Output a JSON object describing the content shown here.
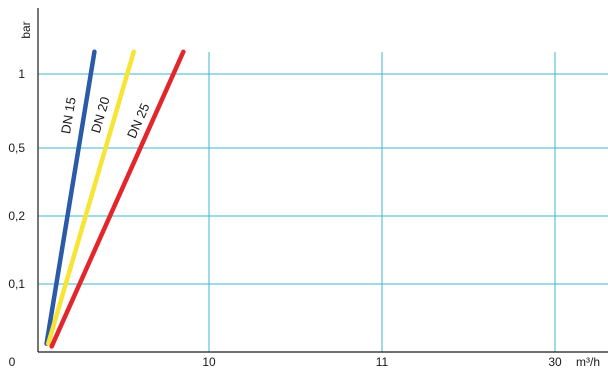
{
  "chart_data": {
    "type": "line",
    "title": "",
    "xlabel": "m³/h",
    "ylabel": "bar",
    "x_ticks": [
      "10",
      "11",
      "30"
    ],
    "y_ticks": [
      "0,1",
      "0,2",
      "0,5",
      "1"
    ],
    "origin_label": "0",
    "grid": true,
    "legend": "none",
    "series": [
      {
        "name": "DN 15",
        "color": "#2b5aa8",
        "points": [
          {
            "x": 0.05,
            "y": 0.03
          },
          {
            "x": 0.33,
            "y": 1.08
          }
        ]
      },
      {
        "name": "DN 20",
        "color": "#f6e535",
        "points": [
          {
            "x": 0.06,
            "y": 0.03
          },
          {
            "x": 0.56,
            "y": 1.08
          }
        ]
      },
      {
        "name": "DN 25",
        "color": "#e3262c",
        "points": [
          {
            "x": 0.08,
            "y": 0.02
          },
          {
            "x": 0.85,
            "y": 1.08
          }
        ]
      }
    ]
  },
  "colors": {
    "grid": "#3fb4cf",
    "axis": "#1a1a1a"
  }
}
